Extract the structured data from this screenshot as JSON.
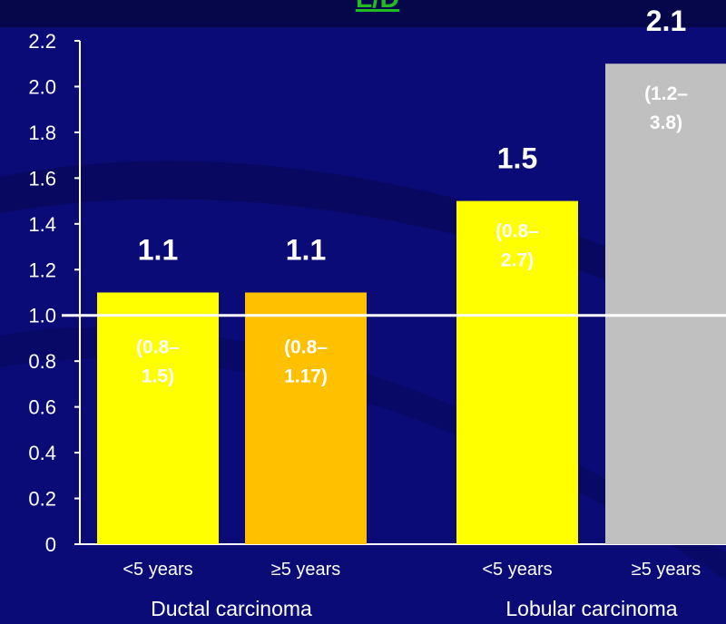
{
  "header": {
    "title_fragment": "L/D"
  },
  "chart_data": {
    "type": "bar",
    "ylim": [
      0,
      2.2
    ],
    "yticks": [
      "0",
      "0.2",
      "0.4",
      "0.6",
      "0.8",
      "1.0",
      "1.2",
      "1.4",
      "1.6",
      "1.8",
      "2.0",
      "2.2"
    ],
    "reference_line": 1.0,
    "groups": [
      "Ductal carcinoma",
      "Lobular carcinoma"
    ],
    "bars": [
      {
        "group": "Ductal carcinoma",
        "category": "<5 years",
        "value": 1.1,
        "label": "1.1",
        "ci_line1": "(0.8–",
        "ci_line2": "1.5)",
        "color": "#ffff00"
      },
      {
        "group": "Ductal carcinoma",
        "category": "≥5 years",
        "value": 1.1,
        "label": "1.1",
        "ci_line1": "(0.8–",
        "ci_line2": "1.17)",
        "color": "#ffc000"
      },
      {
        "group": "Lobular carcinoma",
        "category": "<5 years",
        "value": 1.5,
        "label": "1.5",
        "ci_line1": "(0.8–",
        "ci_line2": "2.7)",
        "color": "#ffff00"
      },
      {
        "group": "Lobular carcinoma",
        "category": "≥5 years",
        "value": 2.1,
        "label": "2.1",
        "ci_line1": "(1.2–",
        "ci_line2": "3.8)",
        "color": "#c0c0c0"
      }
    ]
  },
  "colors": {
    "background": "#0b0b78",
    "axis": "#ffffff",
    "title": "#22bb22"
  }
}
